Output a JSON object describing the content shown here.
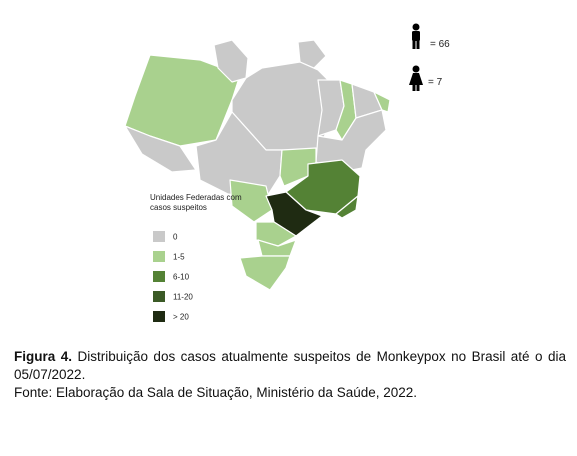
{
  "map": {
    "legend": {
      "title": "Unidades Federadas com casos suspeitos",
      "items": [
        {
          "label": "0",
          "color": "#c9c9c9"
        },
        {
          "label": "1-5",
          "color": "#a9d18e"
        },
        {
          "label": "6-10",
          "color": "#548235"
        },
        {
          "label": "11-20",
          "color": "#3b5a26"
        },
        {
          "label": "> 20",
          "color": "#1f2b12"
        }
      ]
    },
    "sex": {
      "male": "= 66",
      "female": "= 7"
    }
  },
  "caption": {
    "label": "Figura 4.",
    "text": "Distribuição dos casos atualmente suspeitos de Monkeypox no Brasil até o dia 05/07/2022.",
    "source": "Fonte: Elaboração da Sala de Situação, Ministério da Saúde, 2022."
  }
}
